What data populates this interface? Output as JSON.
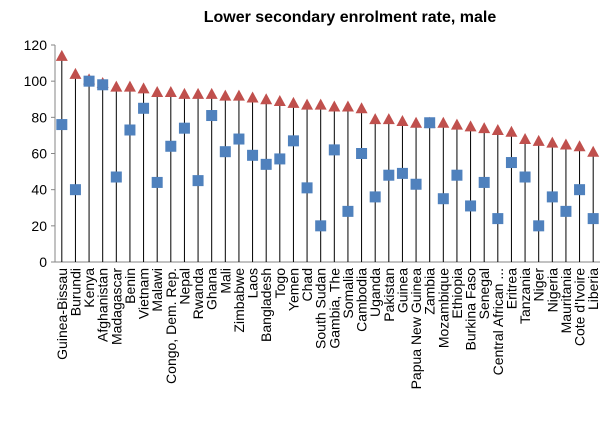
{
  "chart_data": {
    "type": "highlow",
    "title": "Lower secondary enrolment rate, male",
    "categories": [
      "Guinea-Bissau",
      "Burundi",
      "Kenya",
      "Afghanistan",
      "Madagascar",
      "Benin",
      "Vietnam",
      "Malawi",
      "Congo, Dem. Rep.",
      "Nepal",
      "Rwanda",
      "Ghana",
      "Mali",
      "Zimbabwe",
      "Laos",
      "Bangladesh",
      "Togo",
      "Yemen",
      "Chad",
      "South Sudan",
      "Gambia, The",
      "Somalia",
      "Cambodia",
      "Uganda",
      "Pakistan",
      "Guinea",
      "Papua New Guinea",
      "Zambia",
      "Mozambique",
      "Ethiopia",
      "Burkina Faso",
      "Senegal",
      "Central African ...",
      "Eritrea",
      "Tanzania",
      "Niger",
      "Nigeria",
      "Mauritania",
      "Cote d'Ivoire",
      "Liberia"
    ],
    "series": [
      {
        "color": "#c0504d",
        "marker": "triangle",
        "values": [
          114,
          104,
          101,
          99,
          97,
          97,
          96,
          94,
          94,
          93,
          93,
          93,
          92,
          92,
          91,
          90,
          89,
          88,
          87,
          87,
          86,
          86,
          85,
          79,
          79,
          78,
          77,
          77,
          77,
          76,
          75,
          74,
          73,
          72,
          68,
          67,
          66,
          65,
          64,
          61
        ]
      },
      {
        "color": "#4f81bd",
        "marker": "square",
        "values": [
          76,
          40,
          100,
          98,
          47,
          73,
          85,
          44,
          64,
          74,
          45,
          81,
          61,
          68,
          59,
          54,
          57,
          67,
          41,
          20,
          62,
          28,
          60,
          36,
          48,
          49,
          43,
          77,
          35,
          48,
          31,
          44,
          24,
          55,
          47,
          20,
          36,
          28,
          40,
          24
        ]
      }
    ],
    "ylim": [
      0,
      120
    ],
    "yticks": [
      0,
      20,
      40,
      60,
      80,
      100,
      120
    ],
    "drop_lines": true
  }
}
